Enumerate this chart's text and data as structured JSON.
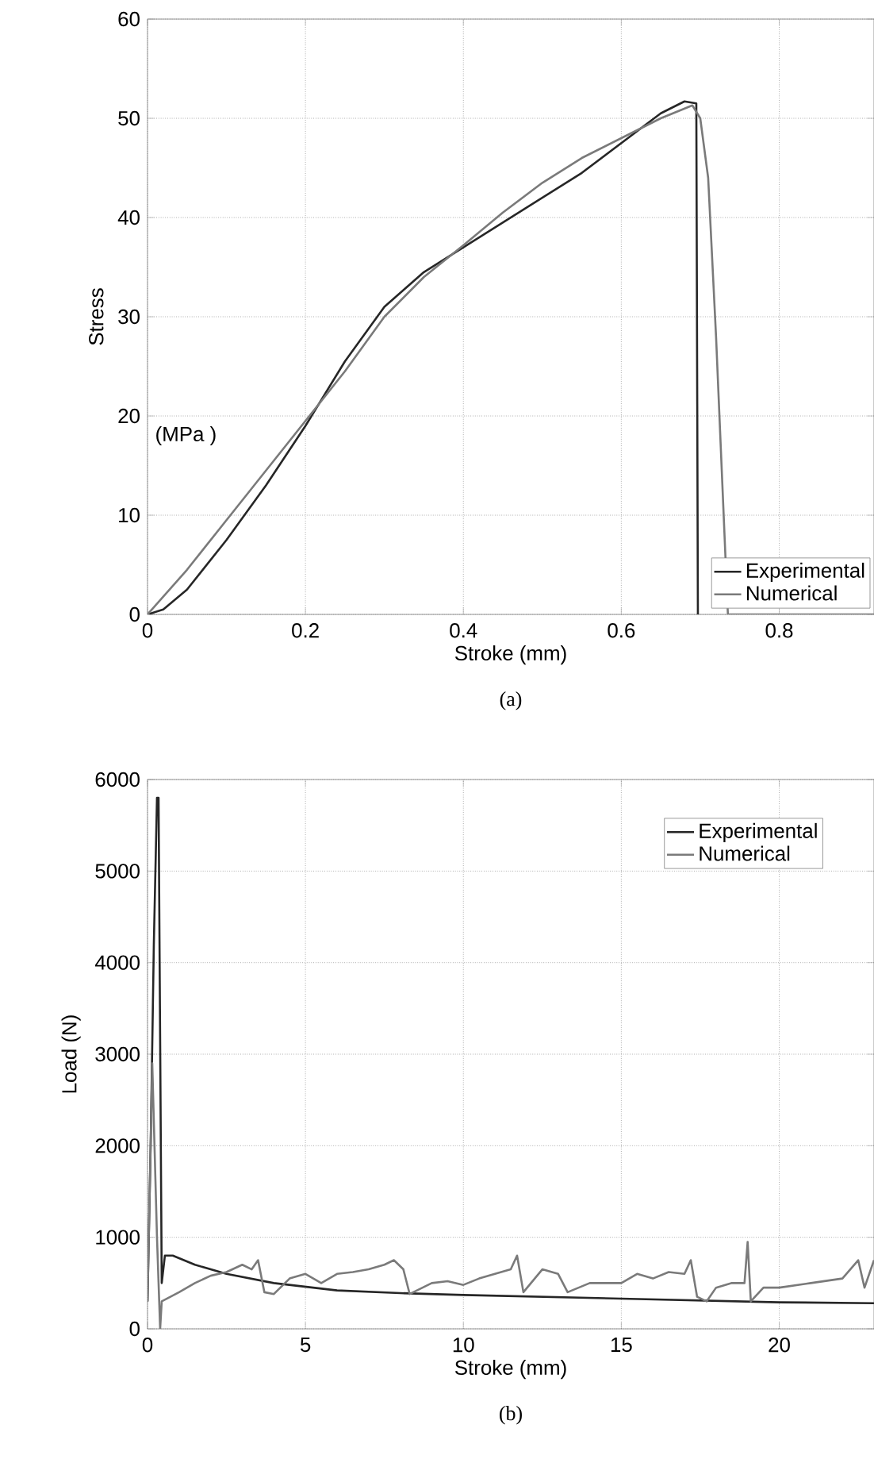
{
  "chart_data": [
    {
      "type": "line",
      "title": "(a)",
      "xlabel": "Stroke (mm)",
      "ylabel": "Stress",
      "annotations": [
        "(MPa )"
      ],
      "xlim": [
        0,
        0.92
      ],
      "ylim": [
        0,
        60
      ],
      "xticks": [
        0,
        0.2,
        0.4,
        0.6,
        0.8
      ],
      "yticks": [
        0,
        10,
        20,
        30,
        40,
        50,
        60
      ],
      "grid": true,
      "legend": "bottom right",
      "series": [
        {
          "name": "Experimental",
          "color": "#262626",
          "x": [
            0,
            0.02,
            0.05,
            0.1,
            0.15,
            0.2,
            0.25,
            0.3,
            0.35,
            0.4,
            0.45,
            0.5,
            0.55,
            0.6,
            0.65,
            0.68,
            0.695,
            0.697
          ],
          "values": [
            0,
            0.5,
            2.5,
            7.5,
            13,
            19,
            25.5,
            31,
            34.5,
            37,
            39.5,
            42,
            44.5,
            47.5,
            50.5,
            51.7,
            51.5,
            0
          ]
        },
        {
          "name": "Numerical",
          "color": "#7a7a7a",
          "x": [
            0,
            0.05,
            0.1,
            0.15,
            0.2,
            0.25,
            0.3,
            0.35,
            0.4,
            0.45,
            0.5,
            0.55,
            0.6,
            0.65,
            0.69,
            0.7,
            0.71,
            0.72,
            0.73,
            0.735,
            0.92
          ],
          "values": [
            0,
            4.5,
            9.5,
            14.5,
            19.5,
            24.5,
            30,
            34,
            37.2,
            40.5,
            43.5,
            46,
            48,
            50,
            51.3,
            50,
            44,
            28,
            null,
            0,
            0
          ]
        }
      ]
    },
    {
      "type": "line",
      "title": "(b)",
      "xlabel": "Stroke (mm)",
      "ylabel": "Load (N)",
      "xlim": [
        0,
        23
      ],
      "ylim": [
        0,
        6000
      ],
      "xticks": [
        0,
        5,
        10,
        15,
        20
      ],
      "yticks": [
        0,
        1000,
        2000,
        3000,
        4000,
        5000,
        6000
      ],
      "grid": true,
      "legend": "top right",
      "series": [
        {
          "name": "Experimental",
          "color": "#262626",
          "x": [
            0,
            0.1,
            0.2,
            0.3,
            0.35,
            0.45,
            0.55,
            0.8,
            1.5,
            2.5,
            4,
            6,
            8,
            10,
            15,
            20,
            23
          ],
          "values": [
            300,
            2000,
            4200,
            5800,
            5800,
            500,
            800,
            800,
            700,
            600,
            500,
            420,
            390,
            370,
            330,
            290,
            280
          ]
        },
        {
          "name": "Numerical",
          "color": "#7a7a7a",
          "x": [
            0,
            0.15,
            0.3,
            0.4,
            0.45,
            1,
            1.5,
            2,
            2.5,
            3,
            3.3,
            3.5,
            3.7,
            4,
            4.5,
            5,
            5.5,
            6,
            6.5,
            7,
            7.5,
            7.8,
            8.1,
            8.3,
            9,
            9.5,
            10,
            10.5,
            11,
            11.5,
            11.7,
            11.9,
            12.5,
            13,
            13.3,
            14,
            15,
            15.5,
            16,
            16.5,
            17,
            17.2,
            17.4,
            17.7,
            18,
            18.5,
            18.9,
            19,
            19.1,
            19.5,
            20,
            21,
            22,
            22.5,
            22.7,
            23
          ],
          "values": [
            300,
            2900,
            1000,
            0,
            300,
            400,
            500,
            580,
            620,
            700,
            650,
            750,
            400,
            380,
            550,
            600,
            500,
            600,
            620,
            650,
            700,
            750,
            650,
            380,
            500,
            520,
            480,
            550,
            600,
            650,
            800,
            400,
            650,
            600,
            400,
            500,
            500,
            600,
            550,
            620,
            600,
            750,
            350,
            300,
            450,
            500,
            500,
            950,
            300,
            450,
            450,
            500,
            550,
            750,
            450,
            750
          ]
        }
      ]
    }
  ]
}
